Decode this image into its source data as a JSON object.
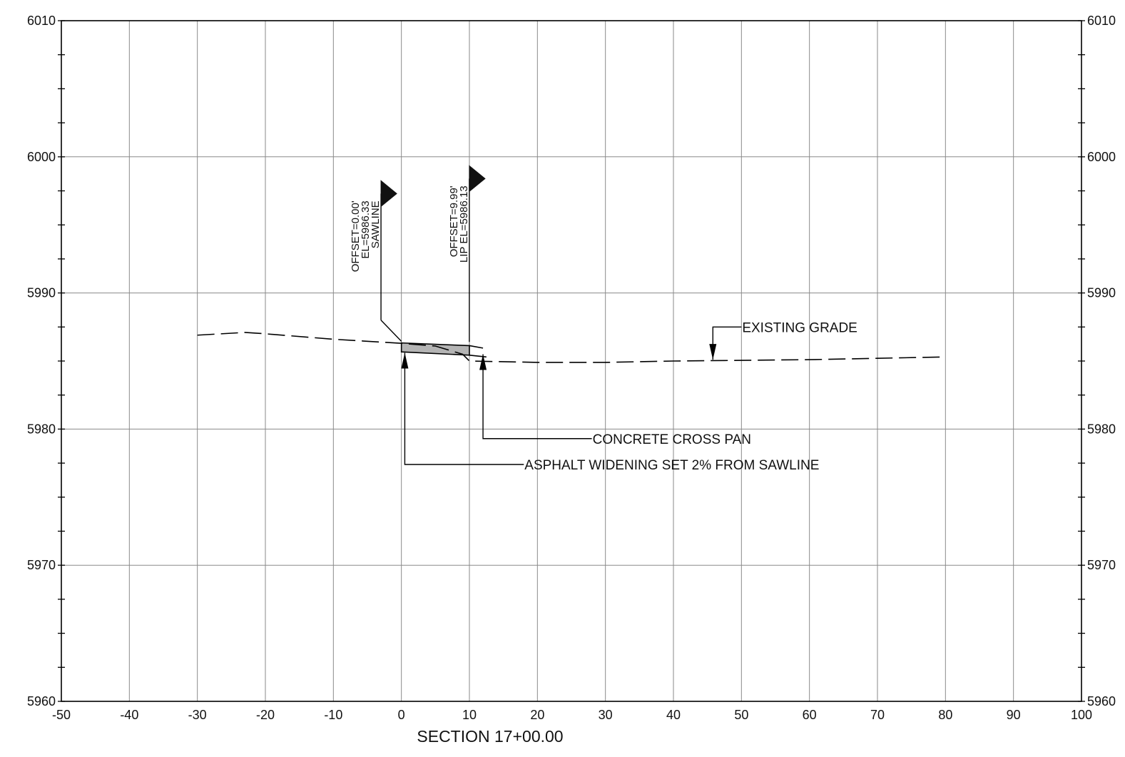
{
  "chart_data": {
    "type": "line",
    "title": "SECTION 17+00.00",
    "xlabel": "",
    "ylabel": "",
    "xlim": [
      -50,
      100
    ],
    "ylim": [
      5960,
      6010
    ],
    "x_ticks": [
      -50,
      -40,
      -30,
      -20,
      -10,
      0,
      10,
      20,
      30,
      40,
      50,
      60,
      70,
      80,
      90,
      100
    ],
    "x_tick_labels": [
      "-50",
      "-40",
      "-30",
      "-20",
      "-10",
      "0",
      "10",
      "20",
      "30",
      "40",
      "50",
      "60",
      "70",
      "80",
      "90",
      "100"
    ],
    "y_ticks": [
      5960,
      5970,
      5980,
      5990,
      6000,
      6010
    ],
    "y_tick_labels": [
      "5960",
      "5970",
      "5980",
      "5990",
      "6000",
      "6010"
    ],
    "y_minor_step": 2.5,
    "grid": true,
    "series": [
      {
        "style": "dashed",
        "points": [
          [
            -30,
            5986.9
          ],
          [
            -23,
            5987.1
          ],
          [
            -20,
            5987.0
          ],
          [
            -10,
            5986.6
          ],
          [
            0,
            5986.3
          ],
          [
            5,
            5986.1
          ],
          [
            9,
            5985.5
          ],
          [
            10,
            5985.0
          ],
          [
            20,
            5984.9
          ],
          [
            30,
            5984.9
          ],
          [
            40,
            5985.0
          ],
          [
            50,
            5985.05
          ],
          [
            60,
            5985.1
          ],
          [
            70,
            5985.2
          ],
          [
            80,
            5985.3
          ]
        ]
      }
    ],
    "shapes": [
      {
        "kind": "asphalt-widening",
        "fill": "#b4b4b4",
        "polygon": [
          [
            0,
            5986.33
          ],
          [
            10,
            5986.13
          ],
          [
            10,
            5985.43
          ],
          [
            0,
            5985.67
          ]
        ]
      },
      {
        "kind": "concrete-cross-pan",
        "polyline_top": [
          [
            10,
            5986.13
          ],
          [
            12,
            5985.95
          ]
        ],
        "polyline_bottom": [
          [
            10,
            5985.43
          ],
          [
            12.5,
            5985.3
          ]
        ]
      }
    ],
    "markers": [
      {
        "offset_x": 0,
        "lines": [
          "OFFSET=0.00'",
          "EL=5986.33",
          "SAWLINE"
        ],
        "leader_x": -3,
        "leader_top_y": 5997.3,
        "leader_bottom_y": 5988.0,
        "target": [
          0,
          5986.45
        ]
      },
      {
        "offset_x": 9.99,
        "lines": [
          "OFFSET=9.99'",
          "LIP  EL=5986.13"
        ],
        "leader_x": 9.99,
        "leader_top_y": 5998.4,
        "leader_bottom_y": 5986.4,
        "target": [
          9.99,
          5986.4
        ]
      }
    ],
    "annotations": [
      {
        "text": "EXISTING GRADE",
        "arrow_tip": [
          45.8,
          5985.1
        ],
        "arrow_from": [
          45.8,
          5987.5
        ],
        "leader_to": [
          50,
          5987.5
        ]
      },
      {
        "text": "CONCRETE CROSS PAN",
        "arrow_tip": [
          12,
          5985.5
        ],
        "arrow_from": [
          12,
          5979.3
        ],
        "leader_to": [
          28,
          5979.3
        ]
      },
      {
        "text": "ASPHALT WIDENING SET 2% FROM SAWLINE",
        "arrow_tip": [
          0.5,
          5985.6
        ],
        "arrow_from": [
          0.5,
          5977.4
        ],
        "leader_to": [
          18,
          5977.4
        ]
      }
    ]
  }
}
